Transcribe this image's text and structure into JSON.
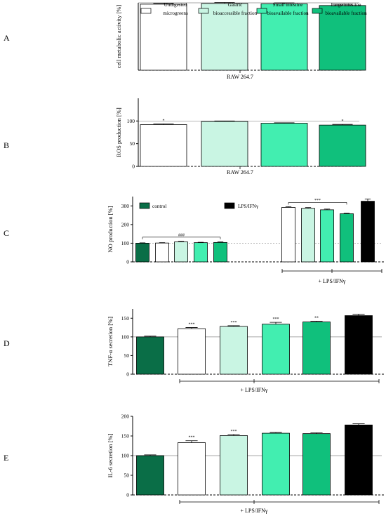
{
  "colors": {
    "undigested": "#ffffff",
    "gastric": "#c9f5e3",
    "small_intestine": "#42eeb0",
    "large_intestine": "#10c07c",
    "control": "#0a6e47",
    "lps": "#000000"
  },
  "legend_top": [
    {
      "label": "Undigested microgreens",
      "color_key": "undigested"
    },
    {
      "label": "Gastric bioaccessible fraction",
      "color_key": "gastric"
    },
    {
      "label": "Small intestine bioavailable fraction",
      "color_key": "small_intestine"
    },
    {
      "label": "Large intestine bioavailable fraction",
      "color_key": "large_intestine"
    }
  ],
  "legend_c": [
    {
      "label": "control",
      "color_key": "control"
    },
    {
      "label": "LPS/IFNγ",
      "color_key": "lps"
    }
  ],
  "chart_data": [
    {
      "panel": "A",
      "type": "bar",
      "ylabel": "cell metabolic activity [%]",
      "xlabel": "RAW 264.7",
      "ylim": [
        0,
        100
      ],
      "yticks": [],
      "reference_line": 100,
      "categories": [
        "Undigested microgreens",
        "Gastric bioaccessible fraction",
        "Small intestine bioavailable fraction",
        "Large intestine bioavailable fraction"
      ],
      "values": [
        98,
        99,
        98.5,
        96
      ],
      "errors": [
        1,
        1.5,
        1.5,
        2
      ],
      "colors": [
        "undigested",
        "gastric",
        "small_intestine",
        "large_intestine"
      ],
      "significance": [
        "",
        "",
        "",
        ""
      ]
    },
    {
      "panel": "B",
      "type": "bar",
      "ylabel": "ROS production [%]",
      "xlabel": "RAW 264.7",
      "ylim": [
        0,
        150
      ],
      "yticks": [
        0,
        50,
        100
      ],
      "reference_line": 100,
      "categories": [
        "Undigested microgreens",
        "Gastric bioaccessible fraction",
        "Small intestine bioavailable fraction",
        "Large intestine bioavailable fraction"
      ],
      "values": [
        92,
        99,
        95,
        91
      ],
      "errors": [
        1.5,
        1,
        1,
        1.5
      ],
      "colors": [
        "undigested",
        "gastric",
        "small_intestine",
        "large_intestine"
      ],
      "significance": [
        "*",
        "",
        "",
        "*"
      ]
    },
    {
      "panel": "C",
      "type": "bar",
      "ylabel": "NO production [%]",
      "xlabel": "+ LPS/IFNγ",
      "ylim": [
        0,
        350
      ],
      "yticks": [
        0,
        100,
        200,
        300
      ],
      "reference_line": 100,
      "groups": [
        {
          "significance_label": "###",
          "values": [
            100,
            101,
            107,
            103,
            104
          ],
          "errors": [
            2,
            2,
            3,
            2,
            3
          ],
          "colors": [
            "control",
            "undigested",
            "gastric",
            "small_intestine",
            "large_intestine"
          ]
        },
        {
          "significance_label": "***",
          "values": [
            292,
            287,
            279,
            258,
            325
          ],
          "errors": [
            4,
            4,
            4,
            3,
            12
          ],
          "colors": [
            "undigested",
            "gastric",
            "small_intestine",
            "large_intestine",
            "lps"
          ]
        }
      ]
    },
    {
      "panel": "D",
      "type": "bar",
      "ylabel": "TNF-α secretion [%]",
      "xlabel": "+ LPS/IFNγ",
      "ylim": [
        0,
        175
      ],
      "yticks": [
        0,
        50,
        100,
        150
      ],
      "reference_line": 100,
      "values": [
        100,
        122,
        128,
        134,
        140,
        157
      ],
      "errors": [
        2,
        3,
        2,
        5,
        2,
        4
      ],
      "colors": [
        "control",
        "undigested",
        "gastric",
        "small_intestine",
        "large_intestine",
        "lps"
      ],
      "significance": [
        "",
        "***",
        "***",
        "***",
        "**",
        ""
      ]
    },
    {
      "panel": "E",
      "type": "bar",
      "ylabel": "IL-6 secretion [%]",
      "xlabel": "+ LPS/IFNγ",
      "ylim": [
        0,
        200
      ],
      "yticks": [
        0,
        50,
        100,
        150,
        200
      ],
      "reference_line": 100,
      "values": [
        100,
        133,
        151,
        157,
        156,
        178
      ],
      "errors": [
        2,
        5,
        3,
        2,
        2,
        3
      ],
      "colors": [
        "control",
        "undigested",
        "gastric",
        "small_intestine",
        "large_intestine",
        "lps"
      ],
      "significance": [
        "",
        "***",
        "***",
        "",
        "",
        ""
      ]
    }
  ]
}
